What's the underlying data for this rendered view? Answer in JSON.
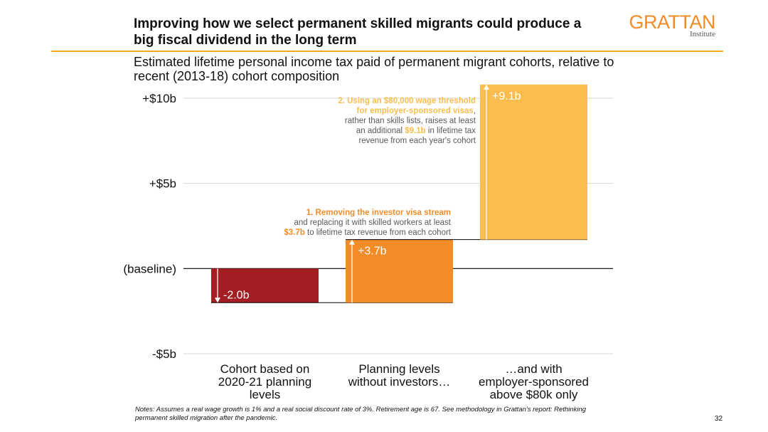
{
  "header": {
    "title": "Improving how we select permanent skilled migrants could produce a big fiscal dividend in the long term",
    "subtitle": "Estimated lifetime personal income tax paid of permanent migrant cohorts, relative to recent (2013-18) cohort composition",
    "logo_main": "GRATTAN",
    "logo_sub": "Institute"
  },
  "colors": {
    "accent": "#f4a91c",
    "bar1": "#a31e23",
    "bar2": "#f28c28",
    "bar3": "#fbbd4d",
    "annotation_text": "#595959"
  },
  "chart_data": {
    "type": "bar",
    "subtype": "waterfall",
    "categories": [
      "Cohort based on 2020-21 planning levels",
      "Planning levels without investors…",
      "…and with employer-sponsored above $80k only"
    ],
    "category_lines": [
      [
        "Cohort based on",
        "2020-21 planning",
        "levels"
      ],
      [
        "Planning levels",
        "without investors…"
      ],
      [
        "…and with",
        "employer-sponsored",
        "above $80k only"
      ]
    ],
    "deltas": [
      -2.0,
      3.7,
      9.1
    ],
    "value_labels": [
      "-2.0b",
      "+3.7b",
      "+9.1b"
    ],
    "ylim": [
      -5,
      10
    ],
    "yticks": [
      {
        "value": 10,
        "label": "+$10b"
      },
      {
        "value": 5,
        "label": "+$5b"
      },
      {
        "value": 0,
        "label": "(baseline)"
      },
      {
        "value": -5,
        "label": "-$5b"
      }
    ],
    "unit": "$ billion",
    "grid": true,
    "annotations": [
      {
        "target": 1,
        "lines": [
          [
            {
              "t": "1.  Removing the investor visa stream",
              "c": "#f28c28",
              "b": true
            }
          ],
          [
            {
              "t": "and replacing it with skilled workers at least",
              "c": "#595959",
              "b": false
            }
          ],
          [
            {
              "t": "$3.7b",
              "c": "#f28c28",
              "b": true
            },
            {
              "t": " to lifetime tax revenue from each cohort",
              "c": "#595959",
              "b": false
            }
          ]
        ]
      },
      {
        "target": 2,
        "lines": [
          [
            {
              "t": "2. Using an $80,000 wage threshold",
              "c": "#fbbd4d",
              "b": true
            }
          ],
          [
            {
              "t": "for employer-sponsored visas",
              "c": "#fbbd4d",
              "b": true
            },
            {
              "t": ",",
              "c": "#595959",
              "b": false
            }
          ],
          [
            {
              "t": "rather than skills lists, raises at least",
              "c": "#595959",
              "b": false
            }
          ],
          [
            {
              "t": "an additional ",
              "c": "#595959",
              "b": false
            },
            {
              "t": "$9.1b",
              "c": "#fbbd4d",
              "b": true
            },
            {
              "t": " in lifetime tax",
              "c": "#595959",
              "b": false
            }
          ],
          [
            {
              "t": "revenue from each year's cohort",
              "c": "#595959",
              "b": false
            }
          ]
        ]
      }
    ]
  },
  "footer": {
    "notes": "Notes: Assumes a real wage growth is 1% and a real social discount rate of 3%. Retirement age is 67. See methodology in Grattan's report: Rethinking permanent skilled migration after the pandemic.",
    "page_number": "32"
  }
}
